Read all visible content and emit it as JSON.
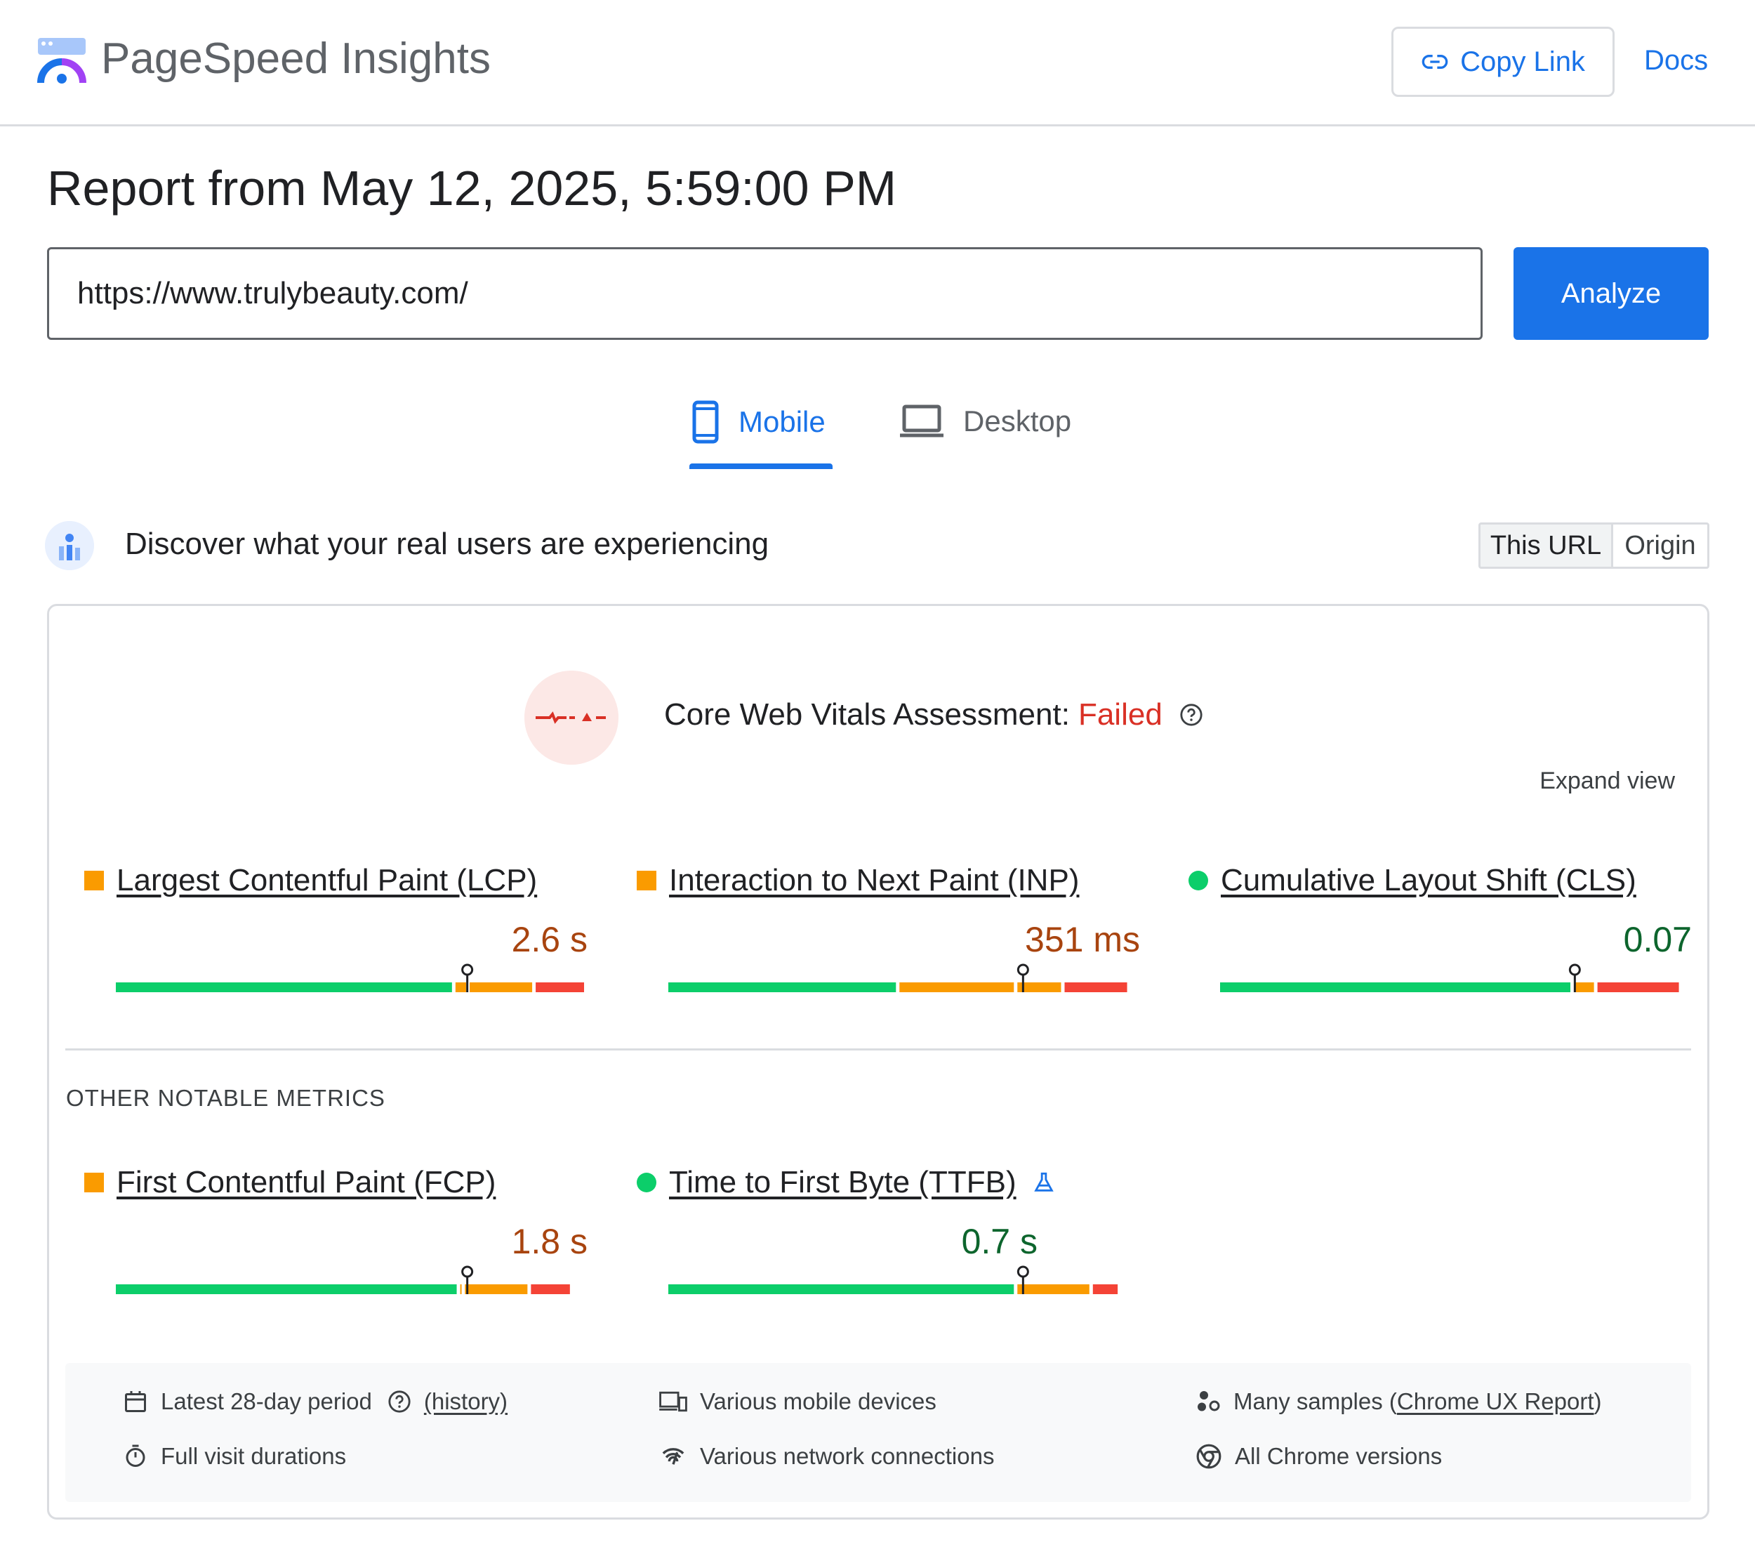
{
  "header": {
    "brand": "PageSpeed Insights",
    "copy_link_label": "Copy Link",
    "docs_label": "Docs"
  },
  "report": {
    "title": "Report from May 12, 2025, 5:59:00 PM",
    "url_value": "https://www.trulybeauty.com/",
    "analyze_label": "Analyze"
  },
  "tabs": [
    {
      "label": "Mobile",
      "active": true,
      "icon": "phone-icon"
    },
    {
      "label": "Desktop",
      "active": false,
      "icon": "laptop-icon"
    }
  ],
  "field": {
    "heading": "Discover what your real users are experiencing",
    "toggle": [
      "This URL",
      "Origin"
    ]
  },
  "assessment": {
    "label": "Core Web Vitals Assessment:",
    "status": "Failed",
    "expand_label": "Expand view"
  },
  "core_metrics": [
    {
      "name": "Largest Contentful Paint (LCP)",
      "value": "2.6 s",
      "rating": "needs-improvement",
      "marker_pct": 0.745,
      "dist": [
        0.72,
        0.03,
        0.14,
        0.11
      ]
    },
    {
      "name": "Interaction to Next Paint (INP)",
      "value": "351 ms",
      "rating": "needs-improvement",
      "marker_pct": 0.752,
      "dist": [
        0.49,
        0.25,
        0.1,
        0.14
      ]
    },
    {
      "name": "Cumulative Layout Shift (CLS)",
      "value": "0.07",
      "rating": "good",
      "marker_pct": 0.752,
      "dist": [
        0.75,
        0.0,
        0.05,
        0.18
      ]
    }
  ],
  "other_heading": "OTHER NOTABLE METRICS",
  "other_metrics": [
    {
      "name": "First Contentful Paint (FCP)",
      "value": "1.8 s",
      "rating": "needs-improvement",
      "marker_pct": 0.745,
      "dist": [
        0.73,
        0.01,
        0.14,
        0.09
      ]
    },
    {
      "name": "Time to First Byte (TTFB)",
      "value": "0.7 s",
      "rating": "good",
      "marker_pct": 0.752,
      "dist": [
        0.74,
        0.0,
        0.16,
        0.06
      ],
      "experimental": true
    }
  ],
  "footer": {
    "period": "Latest 28-day period",
    "history": "(history)",
    "devices": "Various mobile devices",
    "samples_prefix": "Many samples (",
    "samples_link": "Chrome UX Report",
    "samples_suffix": ")",
    "durations": "Full visit durations",
    "network": "Various network connections",
    "chrome": "All Chrome versions"
  },
  "colors": {
    "accent": "#1a73e8",
    "good": "#0cce6a",
    "average": "#fa9b00",
    "poor": "#f44336",
    "failed": "#d93025"
  }
}
